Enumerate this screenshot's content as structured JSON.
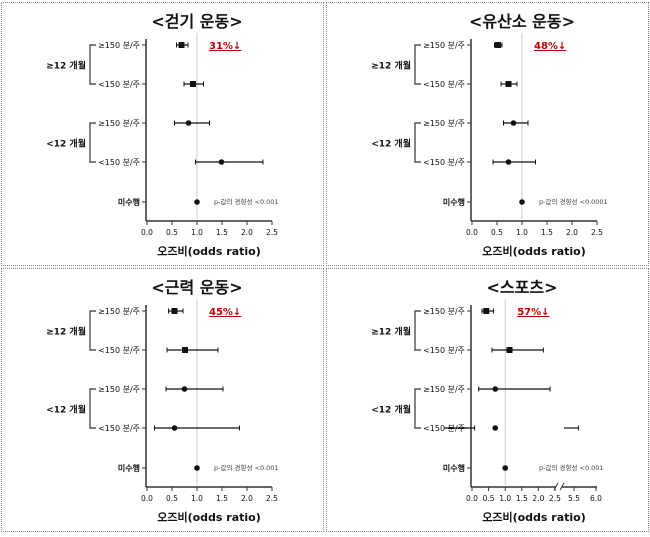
{
  "row_labels": [
    "≥150 분/주",
    "<150 분/주",
    "≥150 분/주",
    "<150 분/주",
    "미수행"
  ],
  "group_labels": [
    "≥12 개월",
    "<12 개월"
  ],
  "colors": {
    "accent": "#c00000",
    "marks": "#111111",
    "reference_line": "#cccccc"
  },
  "chart_data": [
    {
      "type": "forest",
      "title": "<걷기 운동>",
      "xlabel": "오즈비(odds ratio)",
      "xlim": [
        0,
        2.5
      ],
      "xticks": [
        "0.0",
        "0.5",
        "1.0",
        "1.5",
        "2.0",
        "2.5"
      ],
      "reference": 1.0,
      "annotation": "31%↓",
      "p_text": "p-값의 경향성 <0.001",
      "points": [
        {
          "or": 0.69,
          "lo": 0.59,
          "hi": 0.82
        },
        {
          "or": 0.92,
          "lo": 0.74,
          "hi": 1.13
        },
        {
          "or": 0.83,
          "lo": 0.55,
          "hi": 1.25
        },
        {
          "or": 1.49,
          "lo": 0.97,
          "hi": 2.32
        },
        {
          "or": 1.0
        }
      ]
    },
    {
      "type": "forest",
      "title": "<유산소 운동>",
      "xlabel": "오즈비(odds ratio)",
      "xlim": [
        0,
        2.5
      ],
      "xticks": [
        "0.0",
        "0.5",
        "1.0",
        "1.5",
        "2.0",
        "2.5"
      ],
      "reference": 1.0,
      "annotation": "48%↓",
      "p_text": "p-값의 경향성 <0.0001",
      "points": [
        {
          "or": 0.52,
          "lo": 0.45,
          "hi": 0.6
        },
        {
          "or": 0.73,
          "lo": 0.58,
          "hi": 0.9
        },
        {
          "or": 0.83,
          "lo": 0.63,
          "hi": 1.12
        },
        {
          "or": 0.73,
          "lo": 0.42,
          "hi": 1.27
        },
        {
          "or": 1.0
        }
      ]
    },
    {
      "type": "forest",
      "title": "<근력 운동>",
      "xlabel": "오즈비(odds ratio)",
      "xlim": [
        0,
        2.5
      ],
      "xticks": [
        "0.0",
        "0.5",
        "1.0",
        "1.5",
        "2.0",
        "2.5"
      ],
      "reference": 1.0,
      "annotation": "45%↓",
      "p_text": "p-값의 경향성 <0.001",
      "points": [
        {
          "or": 0.55,
          "lo": 0.43,
          "hi": 0.72
        },
        {
          "or": 0.76,
          "lo": 0.4,
          "hi": 1.42
        },
        {
          "or": 0.75,
          "lo": 0.38,
          "hi": 1.52
        },
        {
          "or": 0.55,
          "lo": 0.15,
          "hi": 1.85
        },
        {
          "or": 1.0
        }
      ]
    },
    {
      "type": "forest",
      "title": "<스포츠>",
      "xlabel": "오즈비(odds ratio)",
      "xlim": [
        0,
        6.0
      ],
      "axis_break": [
        2.5,
        5.5
      ],
      "xticks": [
        "0.0",
        "0.5",
        "1.0",
        "1.5",
        "2.0",
        "2.5",
        "5.5",
        "6.0"
      ],
      "reference": 1.0,
      "annotation": "57%↓",
      "p_text": "p-값의 경향성 <0.001",
      "points": [
        {
          "or": 0.43,
          "lo": 0.3,
          "hi": 0.65
        },
        {
          "or": 1.13,
          "lo": 0.6,
          "hi": 2.15
        },
        {
          "or": 0.7,
          "lo": 0.2,
          "hi": 2.35
        },
        {
          "or": 0.7,
          "lo": 0.08,
          "hi": 5.6
        },
        {
          "or": 1.0
        }
      ]
    }
  ]
}
